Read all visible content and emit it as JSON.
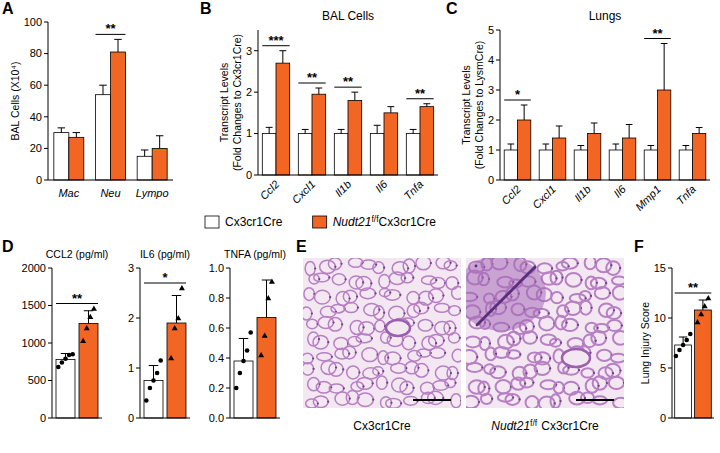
{
  "chart_data": [
    {
      "panel": "A",
      "type": "bar",
      "ylabel": "BAL Cells (X10⁴)",
      "categories": [
        "Mac",
        "Neu",
        "Lympo"
      ],
      "series": [
        {
          "color": "#ffffff",
          "values": [
            30,
            54,
            15
          ],
          "errors": [
            3,
            6,
            4
          ]
        },
        {
          "color": "#f26522",
          "values": [
            27,
            81,
            20
          ],
          "errors": [
            3,
            8,
            8
          ]
        }
      ],
      "ylim": [
        0,
        100
      ],
      "yticks": [
        0,
        20,
        40,
        60,
        80,
        100
      ],
      "annotations": [
        {
          "text": "**",
          "category": 1
        }
      ]
    },
    {
      "panel": "B",
      "type": "bar",
      "title": "BAL Cells",
      "ylabel": [
        "Transcript Levels",
        "(Fold Changes to Cx3cr1Cre)"
      ],
      "categories": [
        "Ccl2",
        "Cxcl1",
        "Il1b",
        "Il6",
        "Tnfa"
      ],
      "series": [
        {
          "color": "#ffffff",
          "values": [
            1,
            1,
            1,
            1,
            1
          ],
          "errors": [
            0.15,
            0.1,
            0.1,
            0.2,
            0.1
          ]
        },
        {
          "color": "#f26522",
          "values": [
            2.7,
            1.95,
            1.8,
            1.5,
            1.65
          ],
          "errors": [
            0.3,
            0.15,
            0.2,
            0.15,
            0.07
          ]
        }
      ],
      "ylim": [
        0,
        3.5
      ],
      "yticks": [
        0,
        1,
        2,
        3
      ],
      "annotations": [
        {
          "text": "***",
          "category": 0
        },
        {
          "text": "**",
          "category": 1
        },
        {
          "text": "**",
          "category": 2
        },
        {
          "text": "**",
          "category": 4
        }
      ]
    },
    {
      "panel": "C",
      "type": "bar",
      "title": "Lungs",
      "ylabel": [
        "Transcript Levels",
        "(Fold Changes to LysmCre)"
      ],
      "categories": [
        "Ccl2",
        "Cxcl1",
        "Il1b",
        "Il6",
        "Mmp1",
        "Tnfa"
      ],
      "series": [
        {
          "color": "#ffffff",
          "values": [
            1,
            1,
            1,
            1,
            1,
            1
          ],
          "errors": [
            0.2,
            0.2,
            0.15,
            0.2,
            0.15,
            0.15
          ]
        },
        {
          "color": "#f26522",
          "values": [
            2.0,
            1.4,
            1.55,
            1.4,
            3.0,
            1.55
          ],
          "errors": [
            0.5,
            0.4,
            0.35,
            0.45,
            1.55,
            0.2
          ]
        }
      ],
      "ylim": [
        0,
        5
      ],
      "yticks": [
        0,
        1,
        2,
        3,
        4,
        5
      ],
      "annotations": [
        {
          "text": "*",
          "category": 0
        },
        {
          "text": "**",
          "category": 4
        }
      ]
    },
    {
      "panel": "D",
      "type": "bar",
      "title": "CCL2 (pg/ml)",
      "categories": [
        null
      ],
      "series": [
        {
          "color": "#ffffff",
          "marker": "circle",
          "values": [
            780
          ],
          "errors": [
            80
          ],
          "points": [
            [
              680,
              740,
              790,
              840,
              850
            ]
          ]
        },
        {
          "color": "#f26522",
          "marker": "triangle",
          "values": [
            1260
          ],
          "errors": [
            170
          ],
          "points": [
            [
              1030,
              1200,
              1350,
              1460
            ]
          ]
        }
      ],
      "ylim": [
        0,
        2000
      ],
      "yticks": [
        0,
        500,
        1000,
        1500,
        2000
      ],
      "annotations": [
        {
          "text": "**",
          "category": 0
        }
      ]
    },
    {
      "type": "bar",
      "title": "IL6 (pg/ml)",
      "categories": [
        null
      ],
      "series": [
        {
          "color": "#ffffff",
          "marker": "circle",
          "values": [
            0.75
          ],
          "errors": [
            0.3
          ],
          "points": [
            [
              0.35,
              0.6,
              0.75,
              0.9,
              1.15
            ]
          ]
        },
        {
          "color": "#f26522",
          "marker": "triangle",
          "values": [
            1.9
          ],
          "errors": [
            0.55
          ],
          "points": [
            [
              1.2,
              1.8,
              2.0,
              2.6
            ]
          ]
        }
      ],
      "ylim": [
        0,
        3
      ],
      "yticks": [
        0,
        1,
        2,
        3
      ],
      "annotations": [
        {
          "text": "*",
          "category": 0
        }
      ]
    },
    {
      "type": "bar",
      "title": "TNFA (pg/ml)",
      "categories": [
        null
      ],
      "series": [
        {
          "color": "#ffffff",
          "marker": "circle",
          "values": [
            0.38
          ],
          "errors": [
            0.15
          ],
          "points": [
            [
              0.2,
              0.3,
              0.38,
              0.45,
              0.57
            ]
          ]
        },
        {
          "color": "#f26522",
          "marker": "triangle",
          "values": [
            0.67
          ],
          "errors": [
            0.25
          ],
          "points": [
            [
              0.42,
              0.55,
              0.8,
              0.91
            ]
          ]
        }
      ],
      "ylim": [
        0,
        1
      ],
      "yticks": [
        {
          "value": 0,
          "label": "0.0"
        },
        0.2,
        0.4,
        0.6,
        0.8,
        {
          "value": 1,
          "label": "1.0"
        }
      ]
    },
    {
      "panel": "F",
      "type": "bar",
      "ylabel": "Lung Injury Score",
      "categories": [
        null
      ],
      "series": [
        {
          "color": "#ffffff",
          "marker": "circle",
          "values": [
            7.3
          ],
          "errors": [
            0.8
          ],
          "points": [
            [
              6.2,
              6.8,
              7.3,
              7.8,
              8.4
            ]
          ]
        },
        {
          "color": "#f26522",
          "marker": "triangle",
          "values": [
            10.8
          ],
          "errors": [
            1.0
          ],
          "points": [
            [
              9.6,
              10.4,
              11.2,
              12.0
            ]
          ]
        }
      ],
      "ylim": [
        0,
        15
      ],
      "yticks": [
        0,
        5,
        10,
        15
      ],
      "annotations": [
        {
          "text": "**",
          "category": 0
        }
      ]
    }
  ],
  "legend": {
    "entries": [
      {
        "color": "#ffffff",
        "name": [
          {
            "text": "Cx3cr1Cre"
          }
        ]
      },
      {
        "color": "#f26522",
        "name": [
          {
            "text": "Nudt21",
            "style": "italic"
          },
          {
            "text": "f/f",
            "style": "sup"
          },
          {
            "text": "Cx3cr1Cre"
          }
        ]
      }
    ]
  },
  "images": {
    "panel": "E",
    "captions": [
      [
        {
          "text": "Cx3cr1Cre"
        }
      ],
      [
        {
          "text": "Nudt21",
          "style": "italic"
        },
        {
          "text": "f/f",
          "style": "sup"
        },
        {
          "text": "Cx3cr1Cre",
          "style": "spaced"
        }
      ]
    ]
  }
}
